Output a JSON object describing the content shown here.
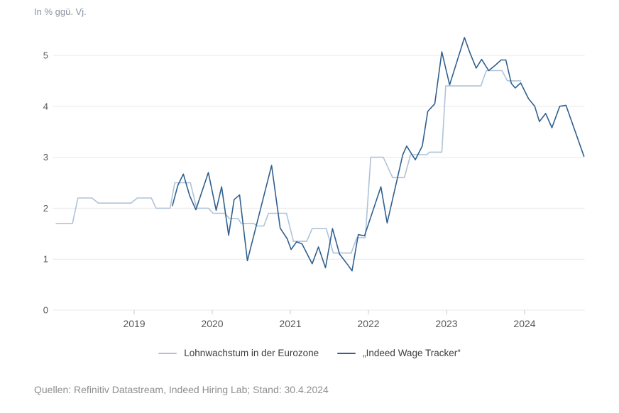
{
  "footer": {
    "source": "Quellen: Refinitiv Datastream, Indeed Hiring Lab; Stand: 30.4.2024"
  },
  "chart_data": {
    "type": "line",
    "unit_label": "In % ggü. Vj.",
    "x_domain": [
      2017.96,
      2024.77
    ],
    "y_domain": [
      0,
      5.5
    ],
    "y_ticks": [
      0,
      1,
      2,
      3,
      4,
      5
    ],
    "x_ticks": [
      2019,
      2020,
      2021,
      2022,
      2023,
      2024
    ],
    "grid": "horizontal",
    "legend_position": "bottom",
    "colors": {
      "grid": "#e8e8e8",
      "axis_text": "#575757",
      "eurozone_line": "#afc3d7",
      "indeed_line": "#30608f"
    },
    "series": [
      {
        "name": "Lohnwachstum in der Eurozone",
        "color": "#afc3d7",
        "points": [
          [
            2018.0,
            1.7
          ],
          [
            2018.21,
            1.7
          ],
          [
            2018.28,
            2.2
          ],
          [
            2018.46,
            2.2
          ],
          [
            2018.54,
            2.1
          ],
          [
            2018.96,
            2.1
          ],
          [
            2019.04,
            2.2
          ],
          [
            2019.22,
            2.2
          ],
          [
            2019.28,
            2.0
          ],
          [
            2019.46,
            2.0
          ],
          [
            2019.52,
            2.5
          ],
          [
            2019.72,
            2.5
          ],
          [
            2019.8,
            2.0
          ],
          [
            2019.95,
            2.0
          ],
          [
            2020.01,
            1.9
          ],
          [
            2020.16,
            1.9
          ],
          [
            2020.22,
            1.8
          ],
          [
            2020.33,
            1.8
          ],
          [
            2020.37,
            1.7
          ],
          [
            2020.53,
            1.7
          ],
          [
            2020.58,
            1.65
          ],
          [
            2020.66,
            1.65
          ],
          [
            2020.72,
            1.9
          ],
          [
            2020.95,
            1.9
          ],
          [
            2021.04,
            1.35
          ],
          [
            2021.21,
            1.35
          ],
          [
            2021.28,
            1.6
          ],
          [
            2021.46,
            1.6
          ],
          [
            2021.55,
            1.12
          ],
          [
            2021.78,
            1.12
          ],
          [
            2021.85,
            1.42
          ],
          [
            2021.96,
            1.42
          ],
          [
            2022.03,
            3.0
          ],
          [
            2022.19,
            3.0
          ],
          [
            2022.31,
            2.6
          ],
          [
            2022.46,
            2.6
          ],
          [
            2022.54,
            3.05
          ],
          [
            2022.75,
            3.05
          ],
          [
            2022.78,
            3.1
          ],
          [
            2022.94,
            3.1
          ],
          [
            2022.99,
            4.4
          ],
          [
            2023.44,
            4.4
          ],
          [
            2023.51,
            4.7
          ],
          [
            2023.71,
            4.7
          ],
          [
            2023.78,
            4.5
          ],
          [
            2023.95,
            4.5
          ]
        ]
      },
      {
        "name": "„Indeed Wage Tracker“",
        "color": "#30608f",
        "points": [
          [
            2019.49,
            2.05
          ],
          [
            2019.56,
            2.45
          ],
          [
            2019.63,
            2.67
          ],
          [
            2019.71,
            2.25
          ],
          [
            2019.79,
            1.97
          ],
          [
            2019.95,
            2.7
          ],
          [
            2020.05,
            1.96
          ],
          [
            2020.12,
            2.42
          ],
          [
            2020.21,
            1.47
          ],
          [
            2020.28,
            2.17
          ],
          [
            2020.35,
            2.26
          ],
          [
            2020.45,
            0.97
          ],
          [
            2020.76,
            2.84
          ],
          [
            2020.87,
            1.61
          ],
          [
            2020.96,
            1.4
          ],
          [
            2021.01,
            1.19
          ],
          [
            2021.08,
            1.34
          ],
          [
            2021.15,
            1.3
          ],
          [
            2021.28,
            0.91
          ],
          [
            2021.36,
            1.24
          ],
          [
            2021.45,
            0.83
          ],
          [
            2021.54,
            1.6
          ],
          [
            2021.63,
            1.1
          ],
          [
            2021.74,
            0.88
          ],
          [
            2021.79,
            0.77
          ],
          [
            2021.87,
            1.48
          ],
          [
            2021.95,
            1.46
          ],
          [
            2022.16,
            2.42
          ],
          [
            2022.24,
            1.71
          ],
          [
            2022.44,
            3.05
          ],
          [
            2022.49,
            3.22
          ],
          [
            2022.6,
            2.95
          ],
          [
            2022.69,
            3.22
          ],
          [
            2022.76,
            3.9
          ],
          [
            2022.85,
            4.05
          ],
          [
            2022.94,
            5.07
          ],
          [
            2023.04,
            4.42
          ],
          [
            2023.23,
            5.35
          ],
          [
            2023.3,
            5.05
          ],
          [
            2023.38,
            4.75
          ],
          [
            2023.45,
            4.92
          ],
          [
            2023.54,
            4.7
          ],
          [
            2023.62,
            4.8
          ],
          [
            2023.7,
            4.91
          ],
          [
            2023.76,
            4.91
          ],
          [
            2023.83,
            4.45
          ],
          [
            2023.88,
            4.36
          ],
          [
            2023.95,
            4.46
          ],
          [
            2024.05,
            4.15
          ],
          [
            2024.13,
            4.0
          ],
          [
            2024.19,
            3.7
          ],
          [
            2024.27,
            3.86
          ],
          [
            2024.35,
            3.58
          ],
          [
            2024.45,
            4.0
          ],
          [
            2024.53,
            4.02
          ],
          [
            2024.76,
            3.02
          ]
        ]
      }
    ]
  }
}
